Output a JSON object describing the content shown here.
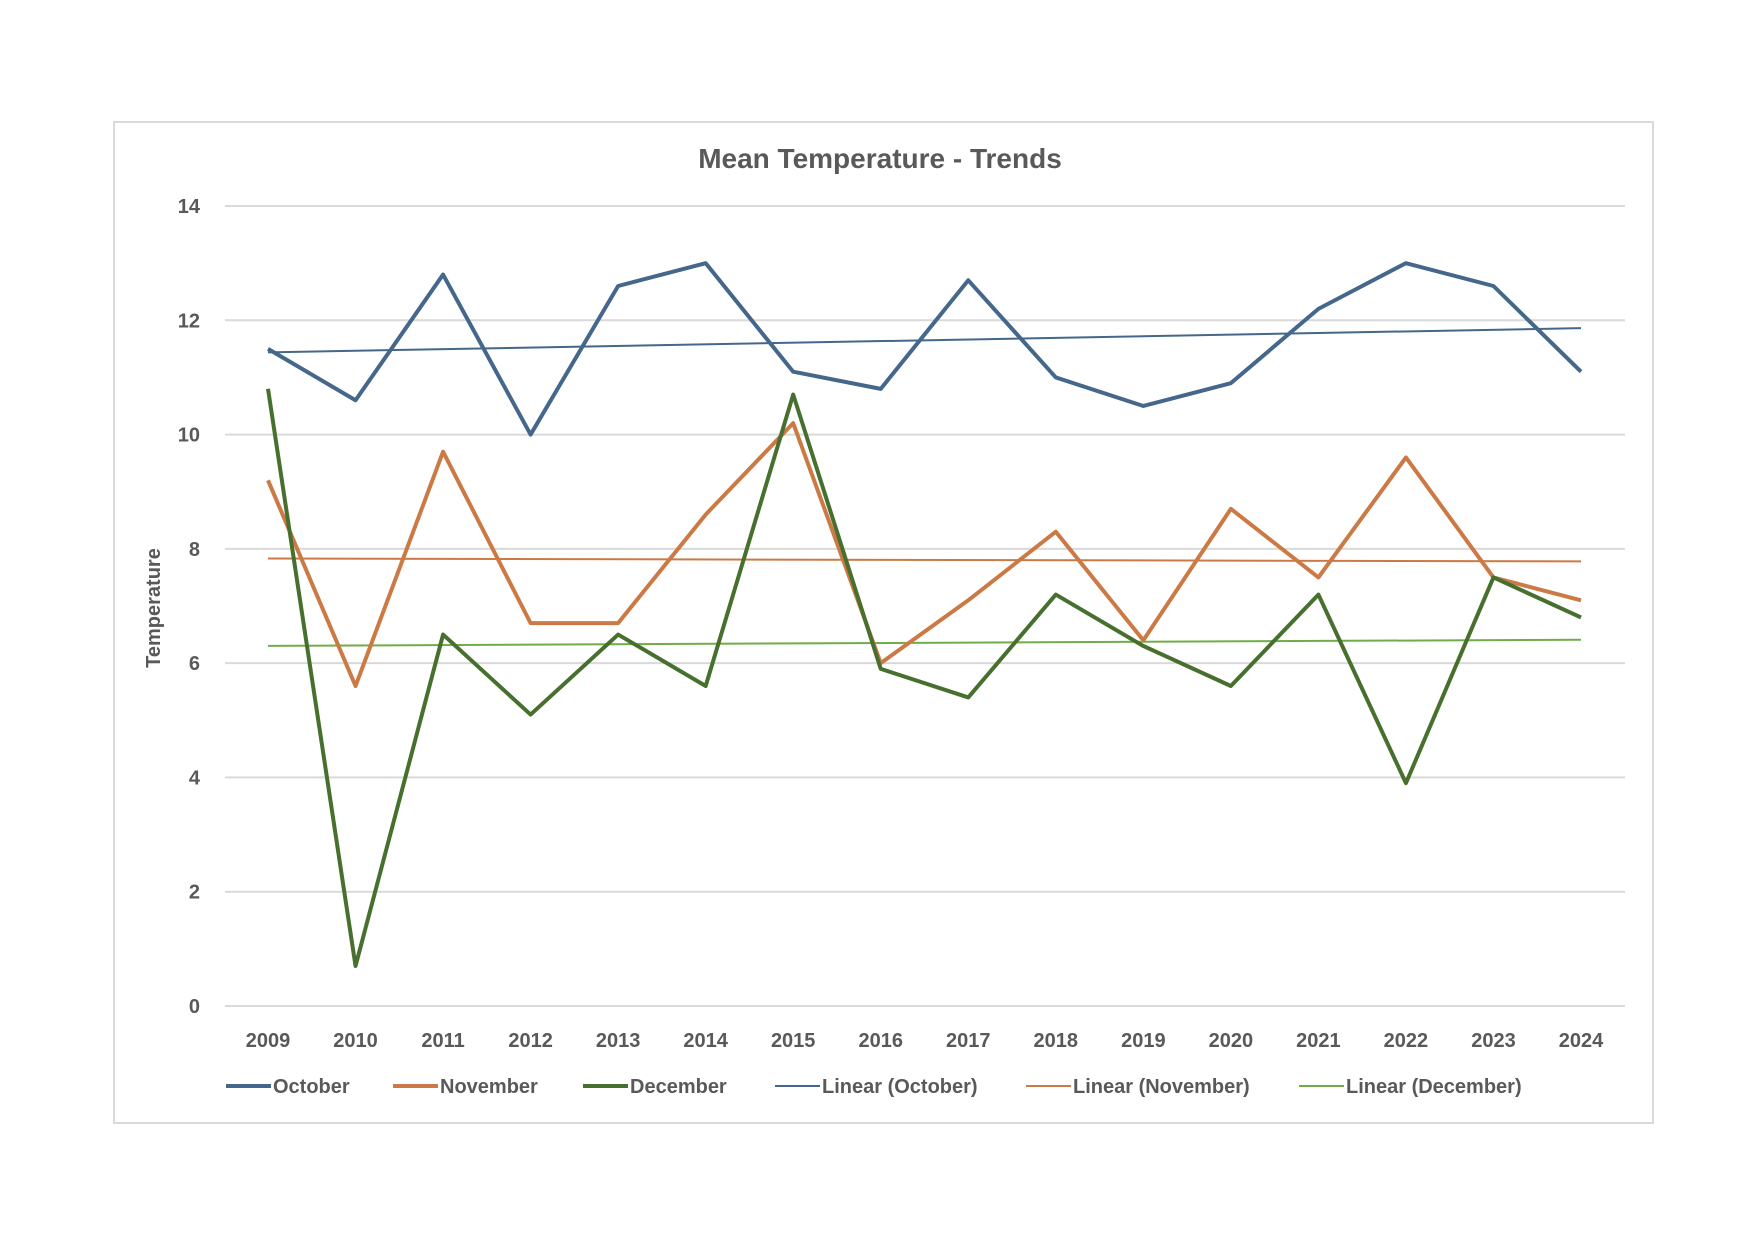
{
  "chart_data": {
    "type": "line",
    "title": "Mean Temperature - Trends",
    "xlabel": "",
    "ylabel": "Temperature",
    "ylim": [
      0,
      14
    ],
    "ytick_step": 2,
    "grid": true,
    "legend_position": "bottom",
    "categories": [
      "2009",
      "2010",
      "2011",
      "2012",
      "2013",
      "2014",
      "2015",
      "2016",
      "2017",
      "2018",
      "2019",
      "2020",
      "2021",
      "2022",
      "2023",
      "2024"
    ],
    "series": [
      {
        "name": "October",
        "color": "#44678b",
        "style": "data",
        "values": [
          11.5,
          10.6,
          12.8,
          10.0,
          12.6,
          13.0,
          11.1,
          10.8,
          12.7,
          11.0,
          10.5,
          10.9,
          12.2,
          13.0,
          12.6,
          11.1
        ]
      },
      {
        "name": "November",
        "color": "#cc7a45",
        "style": "data",
        "values": [
          9.2,
          5.6,
          9.7,
          6.7,
          6.7,
          8.6,
          10.2,
          6.0,
          7.1,
          8.3,
          6.4,
          8.7,
          7.5,
          9.6,
          7.5,
          7.1
        ]
      },
      {
        "name": "December",
        "color": "#47702f",
        "style": "data",
        "values": [
          10.8,
          0.7,
          6.5,
          5.1,
          6.5,
          5.6,
          10.7,
          5.9,
          5.4,
          7.2,
          6.3,
          5.6,
          7.2,
          3.9,
          7.5,
          6.8
        ]
      },
      {
        "name": "Linear (October)",
        "color": "#44678b",
        "style": "trend",
        "of": 0
      },
      {
        "name": "Linear (November)",
        "color": "#cc7a45",
        "style": "trend",
        "of": 1
      },
      {
        "name": "Linear (December)",
        "color": "#70ad47",
        "style": "trend",
        "of": 2
      }
    ]
  }
}
